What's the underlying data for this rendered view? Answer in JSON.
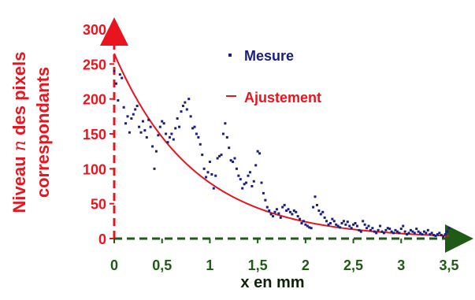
{
  "chart_data": {
    "type": "scatter",
    "xlabel": "x en mm",
    "ylabel_line1_pre": "Niveau ",
    "ylabel_line1_var": "n",
    "ylabel_line1_post": " des pixels",
    "ylabel_line2": "correspondants",
    "xlim": [
      0,
      3.5
    ],
    "ylim": [
      0,
      300
    ],
    "x_ticks": [
      0,
      0.5,
      1,
      1.5,
      2,
      2.5,
      3,
      3.5
    ],
    "x_tick_labels": [
      "0",
      "0,5",
      "1",
      "1,5",
      "2",
      "2,5",
      "3",
      "3,5"
    ],
    "y_ticks": [
      0,
      50,
      100,
      150,
      200,
      250,
      300
    ],
    "y_tick_labels": [
      "0",
      "50",
      "100",
      "150",
      "200",
      "250",
      "300"
    ],
    "grid": false,
    "legend_placement": "top-center",
    "colors": {
      "measure": "#1a1f7a",
      "fit": "#e8141e",
      "y_axis": "#e8141e",
      "x_axis": "#1f5a16",
      "x_tick_text": "#1f5a16",
      "xlabel_text": "#0f1f0a",
      "y_tick_text": "#e8141e",
      "ylabel_text": "#e8141e"
    },
    "series": [
      {
        "name": "Mesure",
        "kind": "scatter",
        "x": [
          0.0,
          0.02,
          0.04,
          0.06,
          0.08,
          0.1,
          0.12,
          0.14,
          0.16,
          0.18,
          0.2,
          0.22,
          0.24,
          0.26,
          0.28,
          0.3,
          0.32,
          0.34,
          0.36,
          0.38,
          0.4,
          0.42,
          0.44,
          0.46,
          0.48,
          0.5,
          0.52,
          0.54,
          0.56,
          0.58,
          0.6,
          0.62,
          0.64,
          0.66,
          0.68,
          0.7,
          0.72,
          0.74,
          0.76,
          0.78,
          0.8,
          0.82,
          0.84,
          0.86,
          0.88,
          0.9,
          0.92,
          0.94,
          0.96,
          0.98,
          1.0,
          1.02,
          1.04,
          1.06,
          1.08,
          1.1,
          1.12,
          1.14,
          1.16,
          1.18,
          1.2,
          1.22,
          1.24,
          1.26,
          1.28,
          1.3,
          1.32,
          1.34,
          1.36,
          1.38,
          1.4,
          1.42,
          1.44,
          1.46,
          1.48,
          1.5,
          1.52,
          1.54,
          1.56,
          1.58,
          1.6,
          1.62,
          1.64,
          1.66,
          1.68,
          1.7,
          1.72,
          1.74,
          1.76,
          1.78,
          1.8,
          1.82,
          1.84,
          1.86,
          1.88,
          1.9,
          1.92,
          1.94,
          1.96,
          1.98,
          2.0,
          2.02,
          2.04,
          2.06,
          2.08,
          2.1,
          2.12,
          2.14,
          2.16,
          2.18,
          2.2,
          2.22,
          2.24,
          2.26,
          2.28,
          2.3,
          2.32,
          2.34,
          2.36,
          2.38,
          2.4,
          2.42,
          2.44,
          2.46,
          2.48,
          2.5,
          2.52,
          2.54,
          2.56,
          2.58,
          2.6,
          2.62,
          2.64,
          2.66,
          2.68,
          2.7,
          2.72,
          2.74,
          2.76,
          2.78,
          2.8,
          2.82,
          2.84,
          2.86,
          2.88,
          2.9,
          2.92,
          2.94,
          2.96,
          2.98,
          3.0,
          3.02,
          3.04,
          3.06,
          3.08,
          3.1,
          3.12,
          3.14,
          3.16,
          3.18,
          3.2,
          3.22,
          3.24,
          3.26,
          3.28,
          3.3,
          3.32,
          3.34,
          3.36,
          3.38,
          3.4,
          3.42,
          3.44,
          3.46,
          3.48,
          3.5
        ],
        "y": [
          240,
          222,
          198,
          235,
          230,
          188,
          165,
          175,
          152,
          172,
          178,
          185,
          190,
          160,
          152,
          168,
          155,
          145,
          170,
          160,
          132,
          100,
          125,
          148,
          160,
          168,
          165,
          150,
          138,
          145,
          150,
          142,
          158,
          172,
          160,
          182,
          190,
          195,
          185,
          200,
          175,
          158,
          160,
          150,
          145,
          135,
          120,
          100,
          88,
          95,
          110,
          92,
          72,
          90,
          115,
          118,
          120,
          150,
          165,
          145,
          130,
          112,
          110,
          115,
          100,
          90,
          85,
          72,
          78,
          80,
          90,
          95,
          75,
          82,
          105,
          125,
          122,
          80,
          65,
          55,
          45,
          40,
          35,
          32,
          38,
          42,
          36,
          30,
          45,
          48,
          40,
          42,
          38,
          35,
          40,
          38,
          32,
          28,
          22,
          25,
          20,
          18,
          16,
          15,
          45,
          60,
          48,
          40,
          35,
          38,
          30,
          25,
          20,
          22,
          28,
          25,
          20,
          18,
          16,
          22,
          25,
          20,
          24,
          18,
          15,
          20,
          22,
          18,
          12,
          10,
          25,
          20,
          15,
          18,
          12,
          15,
          10,
          8,
          12,
          18,
          10,
          8,
          12,
          15,
          14,
          10,
          8,
          12,
          10,
          8,
          14,
          18,
          10,
          6,
          8,
          12,
          10,
          8,
          14,
          10,
          8,
          6,
          10,
          8,
          12,
          6,
          8,
          5,
          4,
          6,
          8,
          5,
          3,
          6,
          10,
          15
        ],
        "color": "#1a1f7a"
      },
      {
        "name": "Ajustement",
        "kind": "line",
        "function": "y = 265 * exp(-1.2 * x)",
        "color": "#e8141e"
      }
    ]
  }
}
